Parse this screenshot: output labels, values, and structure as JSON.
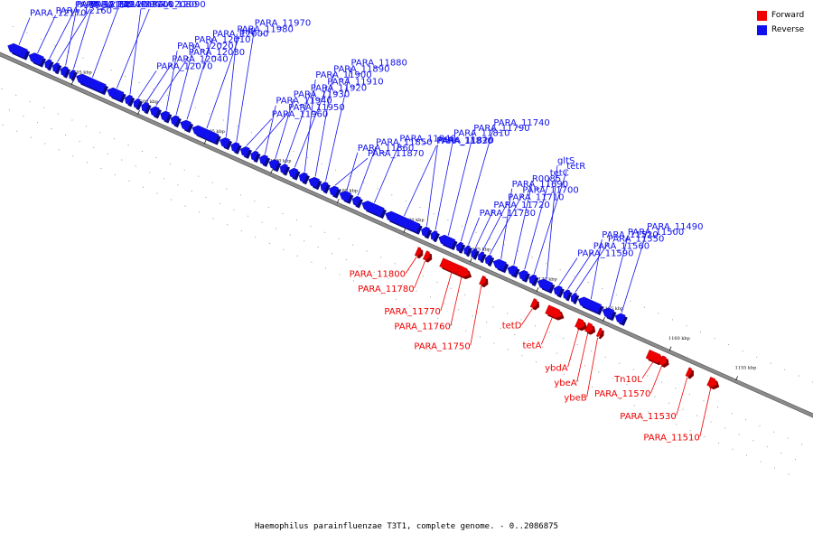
{
  "colors": {
    "forward": "#ee0000",
    "reverse": "#1010ee",
    "backbone": "#8c8c8c"
  },
  "legend": [
    {
      "label": "Forward",
      "strand": "forward"
    },
    {
      "label": "Reverse",
      "strand": "reverse"
    }
  ],
  "caption": "Haemophilus parainfluenzae T3T1, complete genome. - 0..2086875",
  "ticks": [
    "1205 kbp",
    "1200 kbp",
    "1195 kbp",
    "1190 kbp",
    "1185 kbp",
    "1180 kbp",
    "1175 kbp",
    "1170 kbp",
    "1165 kbp",
    "1160 kbp",
    "1155 kbp"
  ],
  "reverse_genes": [
    "PARA_12170",
    "PARA_12160",
    "PARA_12150",
    "PARA_12140",
    "PARA_12130",
    "PARA_12120",
    "PARA_12100",
    "PARA_12090",
    "PARA_12080",
    "PARA_12070",
    "PARA_12040",
    "PARA_12030",
    "PARA_12020",
    "PARA_12010",
    "PARA_12000",
    "pilL",
    "PARA_11980",
    "PARA_11970",
    "PARA_11960",
    "PARA_11950",
    "PARA_11940",
    "PARA_11930",
    "PARA_11920",
    "PARA_11910",
    "PARA_11900",
    "PARA_11890",
    "PARA_11880",
    "PARA_11870",
    "PARA_11860",
    "PARA_11850",
    "PARA_11840",
    "PARA_11830",
    "PARA_11820",
    "PARA_11810",
    "PARA_11790",
    "PARA_11740",
    "PARA_11730",
    "PARA_11720",
    "PARA_11710",
    "PARA_11700",
    "PARA_11690",
    "R0085",
    "tetC",
    "tetR",
    "gltS",
    "PARA_11590",
    "PARA_11560",
    "PARA_11550",
    "PARA_11520",
    "PARA_11500",
    "PARA_11490"
  ],
  "forward_genes": [
    "PARA_11800",
    "PARA_11780",
    "PARA_11770",
    "PARA_11760",
    "PARA_11750",
    "tetD",
    "tetA",
    "ybdA",
    "ybeA",
    "ybeB",
    "Tn10L",
    "PARA_11570",
    "PARA_11530",
    "PARA_11510"
  ]
}
